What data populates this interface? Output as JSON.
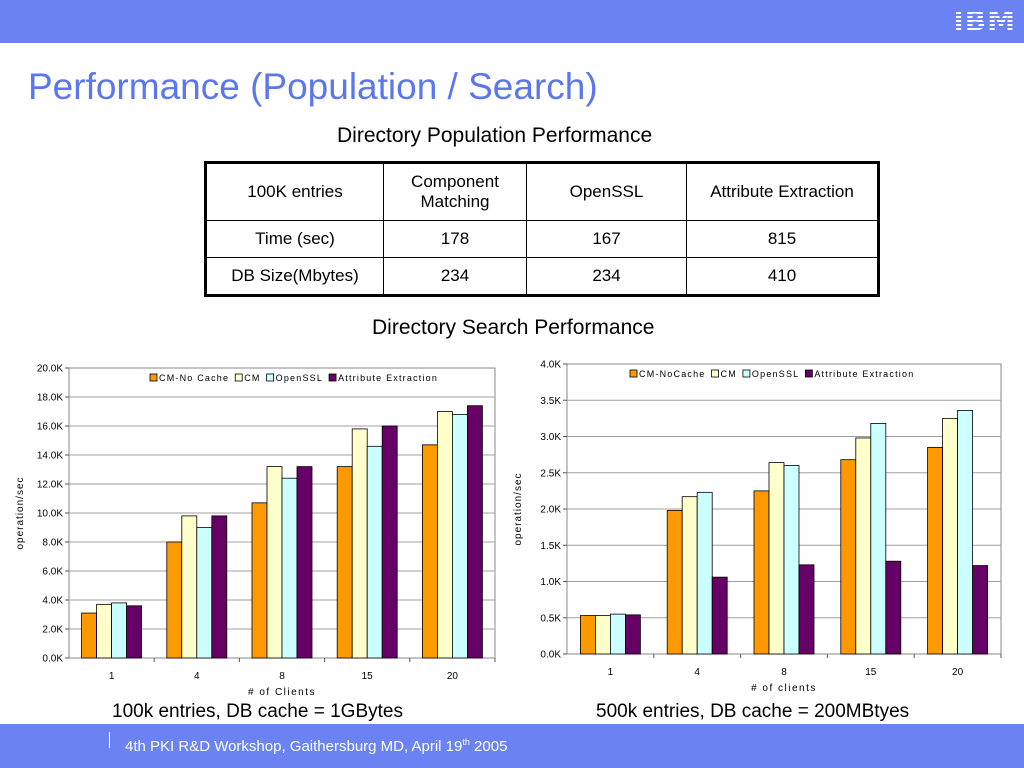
{
  "header": {
    "logo": "IBM"
  },
  "slide_title": "Performance (Population / Search)",
  "population_table": {
    "title": "Directory Population Performance",
    "headers": [
      "100K entries",
      "Component Matching",
      "OpenSSL",
      "Attribute Extraction"
    ],
    "rows": [
      [
        "Time (sec)",
        "178",
        "167",
        "815"
      ],
      [
        "DB Size(Mbytes)",
        "234",
        "234",
        "410"
      ]
    ]
  },
  "search_title": "Directory Search Performance",
  "captions": [
    "100k entries,  DB cache = 1GBytes",
    "500k entries,  DB cache = 200MBtyes"
  ],
  "footer": {
    "text": "4th PKI R&D Workshop, Gaithersburg MD, April 19",
    "sup": "th",
    "year": " 2005"
  },
  "colors": {
    "cm_no_cache": "#ff9900",
    "cm": "#ffffcc",
    "openssl": "#ccffff",
    "attribute_extraction": "#660066",
    "accent": "#6b82f2"
  },
  "chart_data": [
    {
      "type": "bar",
      "categories": [
        "1",
        "4",
        "8",
        "15",
        "20"
      ],
      "xlabel": "# of Clients",
      "ylabel": "operation/sec",
      "ylim": [
        0,
        20000
      ],
      "yticks": [
        "0.0K",
        "2.0K",
        "4.0K",
        "6.0K",
        "8.0K",
        "10.0K",
        "12.0K",
        "14.0K",
        "16.0K",
        "18.0K",
        "20.0K"
      ],
      "legend": "top-center",
      "grid": true,
      "series": [
        {
          "name": "CM-No Cache",
          "values": [
            3100,
            8000,
            10700,
            13200,
            14700
          ]
        },
        {
          "name": "CM",
          "values": [
            3700,
            9800,
            13200,
            15800,
            17000
          ]
        },
        {
          "name": "OpenSSL",
          "values": [
            3800,
            9000,
            12400,
            14600,
            16800
          ]
        },
        {
          "name": "Attribute Extraction",
          "values": [
            3600,
            9800,
            13200,
            16000,
            17400
          ]
        }
      ]
    },
    {
      "type": "bar",
      "categories": [
        "1",
        "4",
        "8",
        "15",
        "20"
      ],
      "xlabel": "# of clients",
      "ylabel": "operation/sec",
      "ylim": [
        0,
        4000
      ],
      "yticks": [
        "0.0K",
        "0.5K",
        "1.0K",
        "1.5K",
        "2.0K",
        "2.5K",
        "3.0K",
        "3.5K",
        "4.0K"
      ],
      "legend": "top-center",
      "grid": true,
      "series": [
        {
          "name": "CM-NoCache",
          "values": [
            530,
            1980,
            2250,
            2680,
            2850
          ]
        },
        {
          "name": "CM",
          "values": [
            530,
            2170,
            2640,
            2980,
            3250
          ]
        },
        {
          "name": "OpenSSL",
          "values": [
            550,
            2230,
            2600,
            3180,
            3360
          ]
        },
        {
          "name": "Attribute Extraction",
          "values": [
            540,
            1060,
            1230,
            1280,
            1220
          ]
        }
      ]
    }
  ]
}
